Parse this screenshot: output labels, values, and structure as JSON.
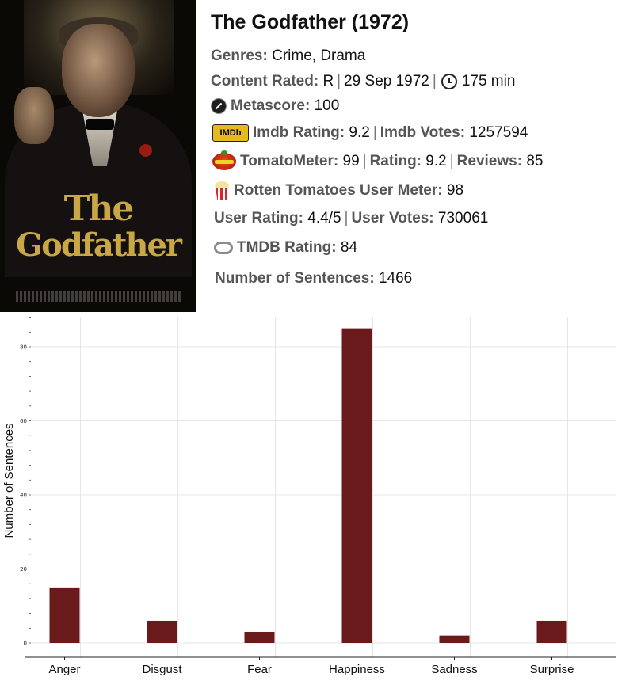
{
  "movie": {
    "title": "The Godfather (1972)",
    "genres_label": "Genres:",
    "genres": "Crime, Drama",
    "content_rated_label": "Content Rated:",
    "content_rated": "R",
    "release_date": "29 Sep 1972",
    "runtime": "175 min",
    "metascore_label": "Metascore:",
    "metascore": "100",
    "imdb_badge": "IMDb",
    "imdb_rating_label": "Imdb Rating:",
    "imdb_rating": "9.2",
    "imdb_votes_label": "Imdb Votes:",
    "imdb_votes": "1257594",
    "tomatometer_label": "TomatoMeter:",
    "tomatometer": "99",
    "rt_rating_label": "Rating:",
    "rt_rating": "9.2",
    "reviews_label": "Reviews:",
    "reviews": "85",
    "rt_user_meter_label": "Rotten Tomatoes User Meter:",
    "rt_user_meter": "98",
    "user_rating_label": "User Rating:",
    "user_rating": "4.4/5",
    "user_votes_label": "User Votes:",
    "user_votes": "730061",
    "tmdb_rating_label": "TMDB Rating:",
    "tmdb_rating": "84",
    "sentences_label": "Number of Sentences:",
    "sentences": "1466",
    "poster_logo_line1": "The",
    "poster_logo_line2": "Godfather"
  },
  "icons": {
    "runtime": "clock-icon",
    "metascore": "metacritic-icon",
    "imdb": "imdb-logo-icon",
    "tomatometer": "tomato-icon",
    "rt_user_meter": "popcorn-icon",
    "tmdb": "tmdb-icon"
  },
  "colors": {
    "bar": "#6b1a1c",
    "grid": "#e6e6e6",
    "label": "#555555"
  },
  "chart_data": {
    "type": "bar",
    "categories": [
      "Anger",
      "Disgust",
      "Fear",
      "Happiness",
      "Sadness",
      "Surprise"
    ],
    "values": [
      15,
      6,
      3,
      85,
      2,
      6
    ],
    "ylabel": "Number of Sentences",
    "xlabel": "",
    "ylim": [
      0,
      88
    ],
    "yticks": [
      0,
      20,
      40,
      60,
      80
    ],
    "grid": true
  }
}
